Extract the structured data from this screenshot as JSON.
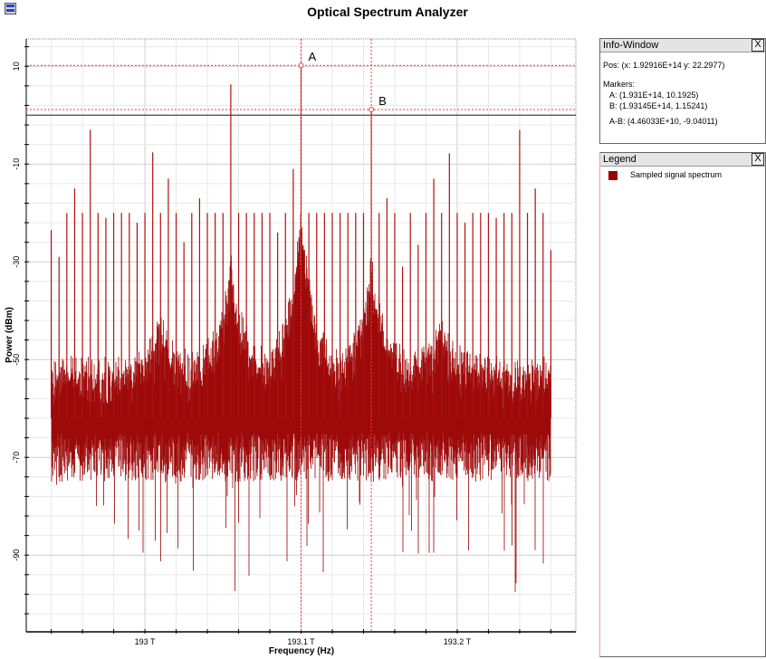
{
  "window": {
    "title": "Optical Spectrum Analyzer",
    "icon": "app-window-icon"
  },
  "info_window": {
    "title": "Info-Window",
    "close": "X",
    "pos": "Pos:  (x: 1.92916E+14  y: 22.2977)",
    "markers_label": "Markers:",
    "marker_a": "A: (1.931E+14, 10.1925)",
    "marker_b": "B: (1.93145E+14, 1.15241)",
    "marker_diff": "A-B: (4.46033E+10, -9.04011)"
  },
  "legend": {
    "title": "Legend",
    "close": "X",
    "items": [
      {
        "label": "Sampled signal spectrum",
        "color": "#990000"
      }
    ]
  },
  "chart_data": {
    "type": "line",
    "xlabel": "Frequency (Hz)",
    "ylabel": "Power (dBm)",
    "x_unit": "THz",
    "xlim": [
      192.924,
      193.276
    ],
    "ylim": [
      -105.7,
      15.6
    ],
    "x_ticks": [
      {
        "value": 193.0,
        "label": "193 T"
      },
      {
        "value": 193.1,
        "label": "193.1 T"
      },
      {
        "value": 193.2,
        "label": "193.2 T"
      }
    ],
    "y_ticks": [
      {
        "value": 10,
        "label": "10"
      },
      {
        "value": -10,
        "label": "-10"
      },
      {
        "value": -30,
        "label": "-30"
      },
      {
        "value": -50,
        "label": "-50"
      },
      {
        "value": -70,
        "label": "-70"
      },
      {
        "value": -90,
        "label": "-90"
      }
    ],
    "grid": true,
    "reference_line_dBm": 0,
    "series": [
      {
        "color": "#990000",
        "spike_start_THz": 192.94,
        "spike_spacing_THz": 0.005,
        "spike_peaks_dBm": [
          -23.5,
          -29,
          -20,
          -15,
          -20,
          -3,
          -20,
          -21,
          -20,
          -20,
          -20,
          -22,
          -20,
          -7.6,
          -20,
          -13,
          -20,
          -26,
          -20,
          -17,
          -20,
          -20,
          -20,
          6.3,
          -20,
          -20,
          -20,
          -20,
          -20,
          -24,
          -20,
          -11,
          10.19,
          -20,
          -20,
          -20,
          -20,
          -20,
          -20,
          -20,
          -20,
          1.15,
          -20,
          -17,
          -20,
          -31,
          -20,
          -26.5,
          -20,
          -13,
          -20,
          -7.8,
          -20,
          -22,
          -20,
          -20,
          -20,
          -21,
          -20,
          -20,
          -3,
          -20,
          -15,
          -20,
          -27.6
        ],
        "noise_floor_dBm": -62,
        "envelope_peaks_THz": [
          193.01,
          193.055,
          193.1,
          193.145,
          193.19
        ]
      }
    ],
    "markers": [
      {
        "label": "A",
        "x_THz": 193.1,
        "y_dBm": 10.1925,
        "color": "#ff3333"
      },
      {
        "label": "B",
        "x_THz": 193.145,
        "y_dBm": 1.15241,
        "color": "#ff3333"
      }
    ]
  }
}
